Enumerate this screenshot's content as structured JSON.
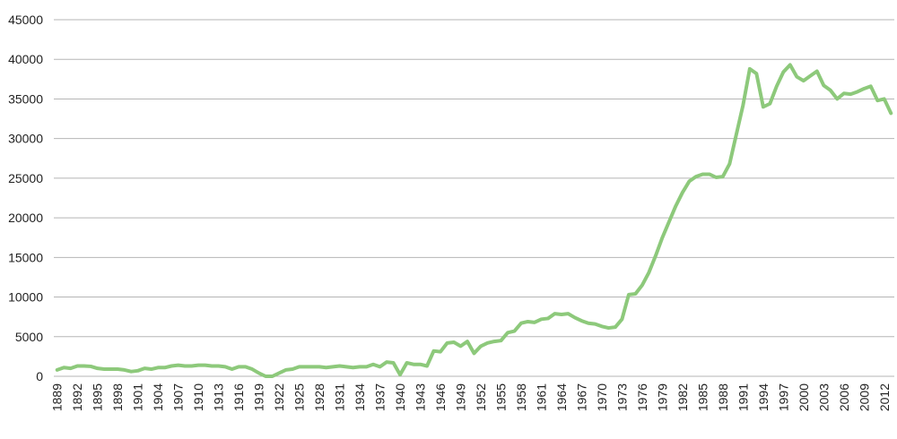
{
  "chart_data": {
    "type": "line",
    "categories": [
      "1889",
      null,
      null,
      "1892",
      null,
      null,
      "1895",
      null,
      null,
      "1898",
      null,
      null,
      "1901",
      null,
      null,
      "1904",
      null,
      null,
      "1907",
      null,
      null,
      "1910",
      null,
      null,
      "1913",
      null,
      null,
      "1916",
      null,
      null,
      "1919",
      null,
      null,
      "1922",
      null,
      null,
      "1925",
      null,
      null,
      "1928",
      null,
      null,
      "1931",
      null,
      null,
      "1934",
      null,
      null,
      "1937",
      null,
      null,
      "1940",
      null,
      null,
      "1943",
      null,
      null,
      "1946",
      null,
      null,
      "1949",
      null,
      null,
      "1952",
      null,
      null,
      "1955",
      null,
      null,
      "1958",
      null,
      null,
      "1961",
      null,
      null,
      "1964",
      null,
      null,
      "1967",
      null,
      null,
      "1970",
      null,
      null,
      "1973",
      null,
      null,
      "1976",
      null,
      null,
      "1979",
      null,
      null,
      "1982",
      null,
      null,
      "1985",
      null,
      null,
      "1988",
      null,
      null,
      "1991",
      null,
      null,
      "1994",
      null,
      null,
      "1997",
      null,
      null,
      "2000",
      null,
      null,
      "2003",
      null,
      null,
      "2006",
      null,
      null,
      "2009",
      null,
      null,
      "2012",
      null
    ],
    "values": [
      800,
      1100,
      1000,
      1300,
      1300,
      1250,
      1000,
      900,
      900,
      900,
      800,
      600,
      700,
      1000,
      900,
      1100,
      1100,
      1300,
      1400,
      1300,
      1300,
      1400,
      1400,
      1300,
      1300,
      1200,
      900,
      1200,
      1200,
      900,
      400,
      0,
      0,
      400,
      800,
      900,
      1200,
      1200,
      1200,
      1200,
      1100,
      1200,
      1300,
      1200,
      1100,
      1200,
      1200,
      1500,
      1200,
      1800,
      1700,
      200,
      1700,
      1500,
      1500,
      1300,
      3200,
      3100,
      4200,
      4300,
      3800,
      4400,
      2900,
      3800,
      4200,
      4400,
      4500,
      5500,
      5700,
      6700,
      6900,
      6800,
      7200,
      7300,
      7900,
      7800,
      7900,
      7400,
      7000,
      6700,
      6600,
      6300,
      6100,
      6200,
      7200,
      10300,
      10400,
      11500,
      13100,
      15200,
      17500,
      19500,
      21500,
      23200,
      24600,
      25200,
      25500,
      25500,
      25100,
      25200,
      26800,
      30500,
      34200,
      38800,
      38200,
      34000,
      34400,
      36600,
      38400,
      39300,
      37800,
      37300,
      37900,
      38500,
      36700,
      36100,
      35000,
      35700,
      35600,
      35900,
      36300,
      36600,
      34800,
      35000,
      33200
    ],
    "color": "#8dc97b",
    "ylim": [
      0,
      45000
    ],
    "yticks": [
      0,
      5000,
      10000,
      15000,
      20000,
      25000,
      30000,
      35000,
      40000,
      45000
    ],
    "grid": true
  }
}
